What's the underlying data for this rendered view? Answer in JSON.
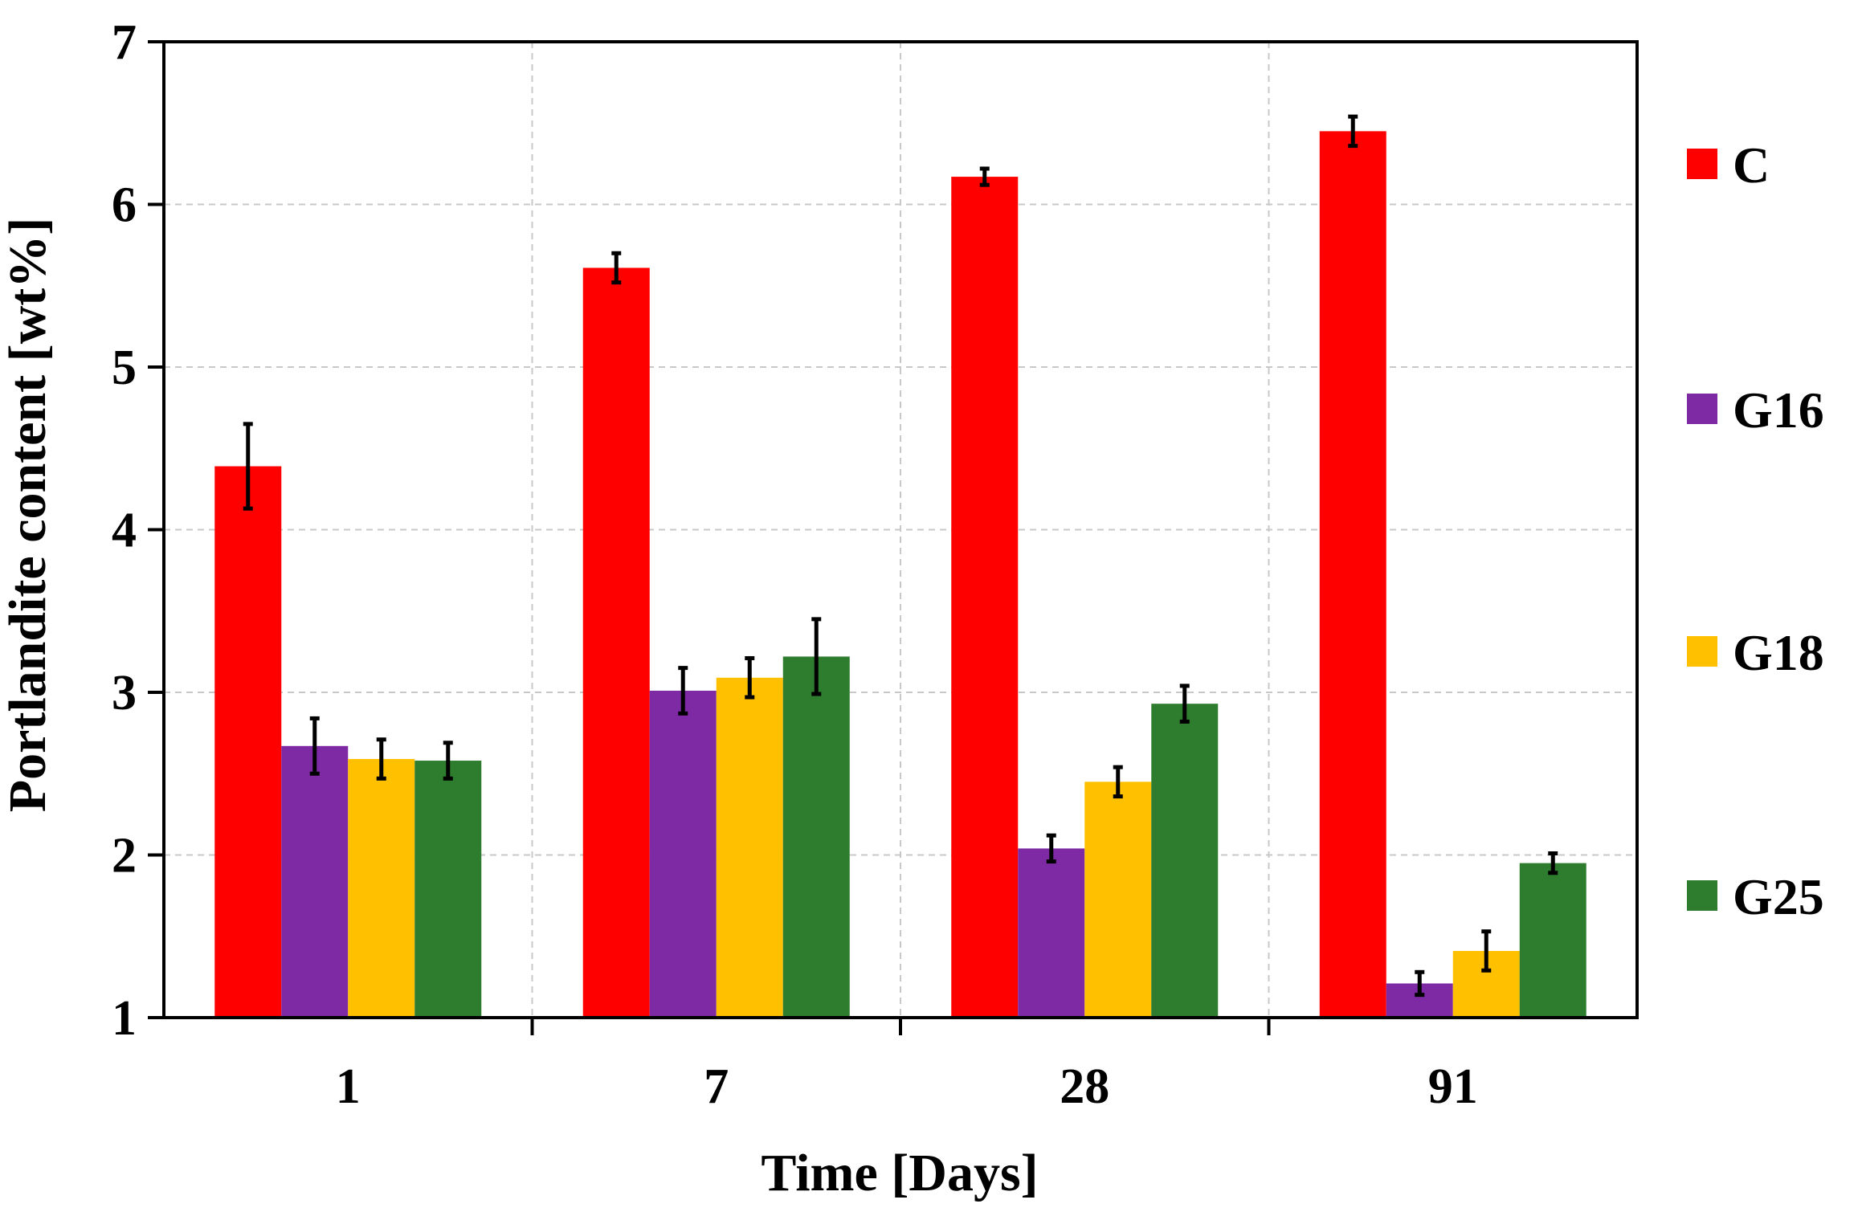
{
  "chart_data": {
    "type": "bar",
    "title": "",
    "xlabel": "Time [Days]",
    "ylabel": "Portlandite content [wt%]",
    "ylim": [
      1,
      7
    ],
    "yticks": [
      1,
      2,
      3,
      4,
      5,
      6,
      7
    ],
    "grid": true,
    "legend_position": "right",
    "categories": [
      "1",
      "7",
      "28",
      "91"
    ],
    "series": [
      {
        "name": "C",
        "color": "#ff0000",
        "values": [
          4.39,
          5.61,
          6.17,
          6.45
        ],
        "errors": [
          0.26,
          0.09,
          0.05,
          0.09
        ]
      },
      {
        "name": "G16",
        "color": "#7f2aa5",
        "values": [
          2.67,
          3.01,
          2.04,
          1.21
        ],
        "errors": [
          0.17,
          0.14,
          0.08,
          0.07
        ]
      },
      {
        "name": "G18",
        "color": "#ffc000",
        "values": [
          2.59,
          3.09,
          2.45,
          1.41
        ],
        "errors": [
          0.12,
          0.12,
          0.09,
          0.12
        ]
      },
      {
        "name": "G25",
        "color": "#2e7d2e",
        "values": [
          2.58,
          3.22,
          2.93,
          1.95
        ],
        "errors": [
          0.11,
          0.23,
          0.11,
          0.06
        ]
      }
    ]
  }
}
